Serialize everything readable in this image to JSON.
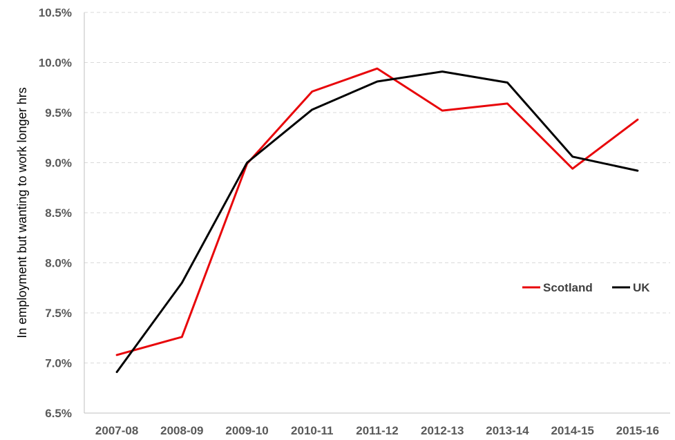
{
  "chart_data": {
    "type": "line",
    "ylabel": "In employment but wanting to work longer hrs",
    "xlabel": "",
    "categories": [
      "2007-08",
      "2008-09",
      "2009-10",
      "2010-11",
      "2011-12",
      "2012-13",
      "2013-14",
      "2014-15",
      "2015-16"
    ],
    "ylim": [
      0.065,
      0.105
    ],
    "ytick_values": [
      0.065,
      0.07,
      0.075,
      0.08,
      0.085,
      0.09,
      0.095,
      0.1,
      0.105
    ],
    "ytick_labels": [
      "6.5%",
      "7.0%",
      "7.5%",
      "8.0%",
      "8.5%",
      "9.0%",
      "9.5%",
      "10.0%",
      "10.5%"
    ],
    "grid": "horizontal-dashed",
    "legend_position": "right",
    "series": [
      {
        "name": "Scotland",
        "color": "#e8060a",
        "values": [
          0.0708,
          0.0726,
          0.0899,
          0.0971,
          0.0994,
          0.0952,
          0.0959,
          0.0894,
          0.0943
        ]
      },
      {
        "name": "UK",
        "color": "#000000",
        "values": [
          0.0691,
          0.078,
          0.09,
          0.0953,
          0.0981,
          0.0991,
          0.098,
          0.0906,
          0.0892
        ]
      }
    ]
  }
}
